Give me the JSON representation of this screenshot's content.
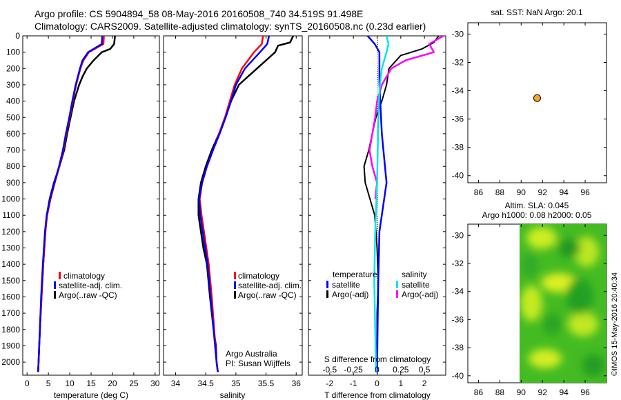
{
  "header": {
    "line1": "Argo profile: CS 5904894_58 08-May-2016 20160508_740 34.519S 91.498E",
    "line2": "Climatology: CARS2009. Satellite-adjusted climatology: synTS_20160508.nc (0.23d earlier)"
  },
  "colors": {
    "climatology": "#ff0000",
    "satellite": "#0000ff",
    "argo": "#000000",
    "satellite_s": "#00e5ee",
    "argo_s": "#ff00ff",
    "marker": "#f5a623"
  },
  "chart_data": [
    {
      "id": "temperature",
      "type": "line",
      "xlabel": "temperature (deg C)",
      "ylabel": "",
      "xlim": [
        -1,
        31
      ],
      "ylim": [
        2080,
        0
      ],
      "xticks": [
        "0",
        "5",
        "10",
        "15",
        "20",
        "25",
        "30"
      ],
      "yticks": [
        "0",
        "100",
        "200",
        "300",
        "400",
        "500",
        "600",
        "700",
        "800",
        "900",
        "1000",
        "1100",
        "1200",
        "1300",
        "1400",
        "1500",
        "1600",
        "1700",
        "1800",
        "1900",
        "2000"
      ],
      "legend": [
        "climatology",
        "satellite-adj. clim.",
        "Argo(..raw -QC)"
      ],
      "series": [
        {
          "name": "climatology",
          "depth": [
            0,
            50,
            100,
            150,
            200,
            300,
            400,
            500,
            600,
            700,
            800,
            900,
            1000,
            1100,
            1200,
            1400,
            1600,
            1800,
            2000,
            2060
          ],
          "values": [
            18.0,
            17.9,
            14.5,
            13.2,
            12.5,
            11.5,
            10.7,
            10.0,
            9.2,
            8.5,
            7.6,
            6.5,
            5.5,
            4.7,
            4.3,
            3.8,
            3.4,
            3.0,
            2.7,
            2.6
          ]
        },
        {
          "name": "satellite-adj. clim.",
          "depth": [
            0,
            50,
            100,
            150,
            200,
            300,
            400,
            500,
            600,
            700,
            800,
            900,
            1000,
            1100,
            1200,
            1400,
            1600,
            1800,
            2000,
            2060
          ],
          "values": [
            17.6,
            17.5,
            14.3,
            13.0,
            12.4,
            11.4,
            10.6,
            9.9,
            9.1,
            8.4,
            7.5,
            6.4,
            5.4,
            4.6,
            4.2,
            3.7,
            3.3,
            3.0,
            2.7,
            2.6
          ]
        },
        {
          "name": "Argo(..raw -QC)",
          "depth": [
            0,
            50,
            80,
            100,
            150,
            200,
            250,
            300,
            400,
            500,
            600,
            700,
            800,
            900,
            1000,
            1100,
            1200,
            1400,
            1600,
            1800,
            2000,
            2060
          ],
          "values": [
            20.6,
            20.4,
            19.5,
            17.5,
            15.6,
            14.0,
            13.0,
            12.2,
            11.0,
            10.2,
            9.4,
            8.7,
            7.6,
            6.3,
            5.3,
            4.6,
            4.3,
            3.8,
            3.4,
            3.0,
            2.7,
            2.6
          ]
        }
      ]
    },
    {
      "id": "salinity",
      "type": "line",
      "xlabel": "salinity",
      "ylabel": "",
      "xlim": [
        33.8,
        36.1
      ],
      "ylim": [
        2080,
        0
      ],
      "xticks": [
        "34",
        "34.5",
        "35",
        "35.5",
        "36"
      ],
      "legend": [
        "climatology",
        "satellite-adj. clim.",
        "Argo(..raw -QC)"
      ],
      "annotation": [
        "Argo Australia",
        "PI: Susan Wijffels"
      ],
      "series": [
        {
          "name": "climatology",
          "depth": [
            0,
            50,
            100,
            200,
            300,
            400,
            500,
            600,
            700,
            800,
            900,
            1000,
            1100,
            1200,
            1400,
            1600,
            1800,
            2000,
            2060
          ],
          "values": [
            35.45,
            35.43,
            35.3,
            35.1,
            34.98,
            34.9,
            34.82,
            34.72,
            34.62,
            34.52,
            34.44,
            34.4,
            34.43,
            34.47,
            34.55,
            34.6,
            34.64,
            34.68,
            34.7
          ]
        },
        {
          "name": "satellite-adj. clim.",
          "depth": [
            0,
            50,
            100,
            200,
            300,
            400,
            500,
            600,
            700,
            800,
            900,
            1000,
            1100,
            1200,
            1400,
            1600,
            1800,
            2000,
            2060
          ],
          "values": [
            35.55,
            35.52,
            35.4,
            35.15,
            35.0,
            34.92,
            34.83,
            34.73,
            34.62,
            34.52,
            34.44,
            34.39,
            34.41,
            34.45,
            34.53,
            34.58,
            34.63,
            34.68,
            34.7
          ]
        },
        {
          "name": "Argo(..raw -QC)",
          "depth": [
            0,
            40,
            60,
            100,
            150,
            200,
            250,
            300,
            400,
            500,
            600,
            700,
            800,
            900,
            1000,
            1100,
            1200,
            1300,
            1400,
            1600,
            1800,
            1900,
            2000,
            2060
          ],
          "values": [
            35.95,
            35.9,
            35.7,
            35.65,
            35.5,
            35.35,
            35.2,
            35.05,
            34.92,
            34.82,
            34.72,
            34.6,
            34.5,
            34.42,
            34.38,
            34.38,
            34.42,
            34.46,
            34.52,
            34.57,
            34.63,
            34.67,
            34.68,
            34.7
          ]
        }
      ]
    },
    {
      "id": "difference",
      "type": "line",
      "xlabel": "T difference from climatology",
      "xlabel_top": "S difference from climatology",
      "xlim": [
        -2.9,
        2.9
      ],
      "ylim": [
        2080,
        0
      ],
      "xticks": [
        "-2",
        "-1",
        "0",
        "1",
        "2"
      ],
      "xticks_s": [
        "-0.5",
        "-0.25",
        "0",
        "0.25",
        "0.5"
      ],
      "legend_titles": [
        "temperature",
        "salinity"
      ],
      "legend": [
        "satellite",
        "Argo(-adj)",
        "satellite",
        "Argo(-adj)"
      ],
      "series": [
        {
          "name": "T satellite",
          "depth": [
            0,
            50,
            100,
            300,
            600,
            900,
            1200,
            1500,
            1800,
            2060
          ],
          "values": [
            -0.4,
            -0.1,
            0.1,
            0.1,
            0.2,
            0.4,
            0.1,
            0.05,
            0.02,
            0.0
          ]
        },
        {
          "name": "T Argo(-adj)",
          "depth": [
            0,
            40,
            80,
            120,
            200,
            300,
            400,
            500,
            600,
            700,
            800,
            900,
            1000,
            1100,
            1200,
            1300,
            1500,
            1700,
            2060
          ],
          "values": [
            2.6,
            2.4,
            1.9,
            1.0,
            0.5,
            0.4,
            0.2,
            -0.05,
            -0.2,
            -0.35,
            -0.55,
            -0.5,
            -0.3,
            -0.1,
            -0.05,
            0.0,
            0.05,
            0.0,
            0.0
          ]
        },
        {
          "name": "S satellite",
          "depth": [
            0,
            50,
            100,
            200,
            300,
            400,
            600,
            900,
            1200,
            1500,
            1800,
            2060
          ],
          "values": [
            0.1,
            0.12,
            0.1,
            0.05,
            0.03,
            0.02,
            0.01,
            0.0,
            -0.02,
            -0.03,
            -0.02,
            -0.01
          ]
        },
        {
          "name": "S Argo(-adj)",
          "depth": [
            0,
            50,
            100,
            150,
            200,
            300,
            400,
            500,
            600,
            700,
            800,
            900,
            1000
          ],
          "values": [
            0.7,
            0.55,
            0.6,
            0.3,
            0.15,
            0.05,
            0.0,
            -0.02,
            -0.05,
            -0.08,
            -0.05,
            0.0,
            -0.02
          ]
        }
      ]
    },
    {
      "id": "location",
      "type": "scatter",
      "title": "sat. SST: NaN Argo: 20.1",
      "xlim": [
        85,
        98
      ],
      "ylim": [
        -40.5,
        -29.2
      ],
      "xticks": [
        "86",
        "88",
        "90",
        "92",
        "94",
        "96"
      ],
      "yticks": [
        "-30",
        "-32",
        "-34",
        "-36",
        "-38",
        "-40"
      ],
      "points": [
        {
          "x": 91.498,
          "y": -34.519
        }
      ]
    },
    {
      "id": "sla",
      "type": "heatmap",
      "title_line1": "Altim. SLA: 0.045",
      "title_line2": "Argo h1000: 0.08 h2000: 0.05",
      "xlim": [
        85,
        98
      ],
      "ylim": [
        -40.5,
        -29.2
      ],
      "data_x_range": [
        90,
        98
      ],
      "xticks": [
        "86",
        "88",
        "90",
        "92",
        "94",
        "96"
      ],
      "yticks": [
        "-30",
        "-32",
        "-34",
        "-36",
        "-38",
        "-40"
      ]
    }
  ],
  "watermark": "©IMOS 15-May-2016 20:40:34"
}
